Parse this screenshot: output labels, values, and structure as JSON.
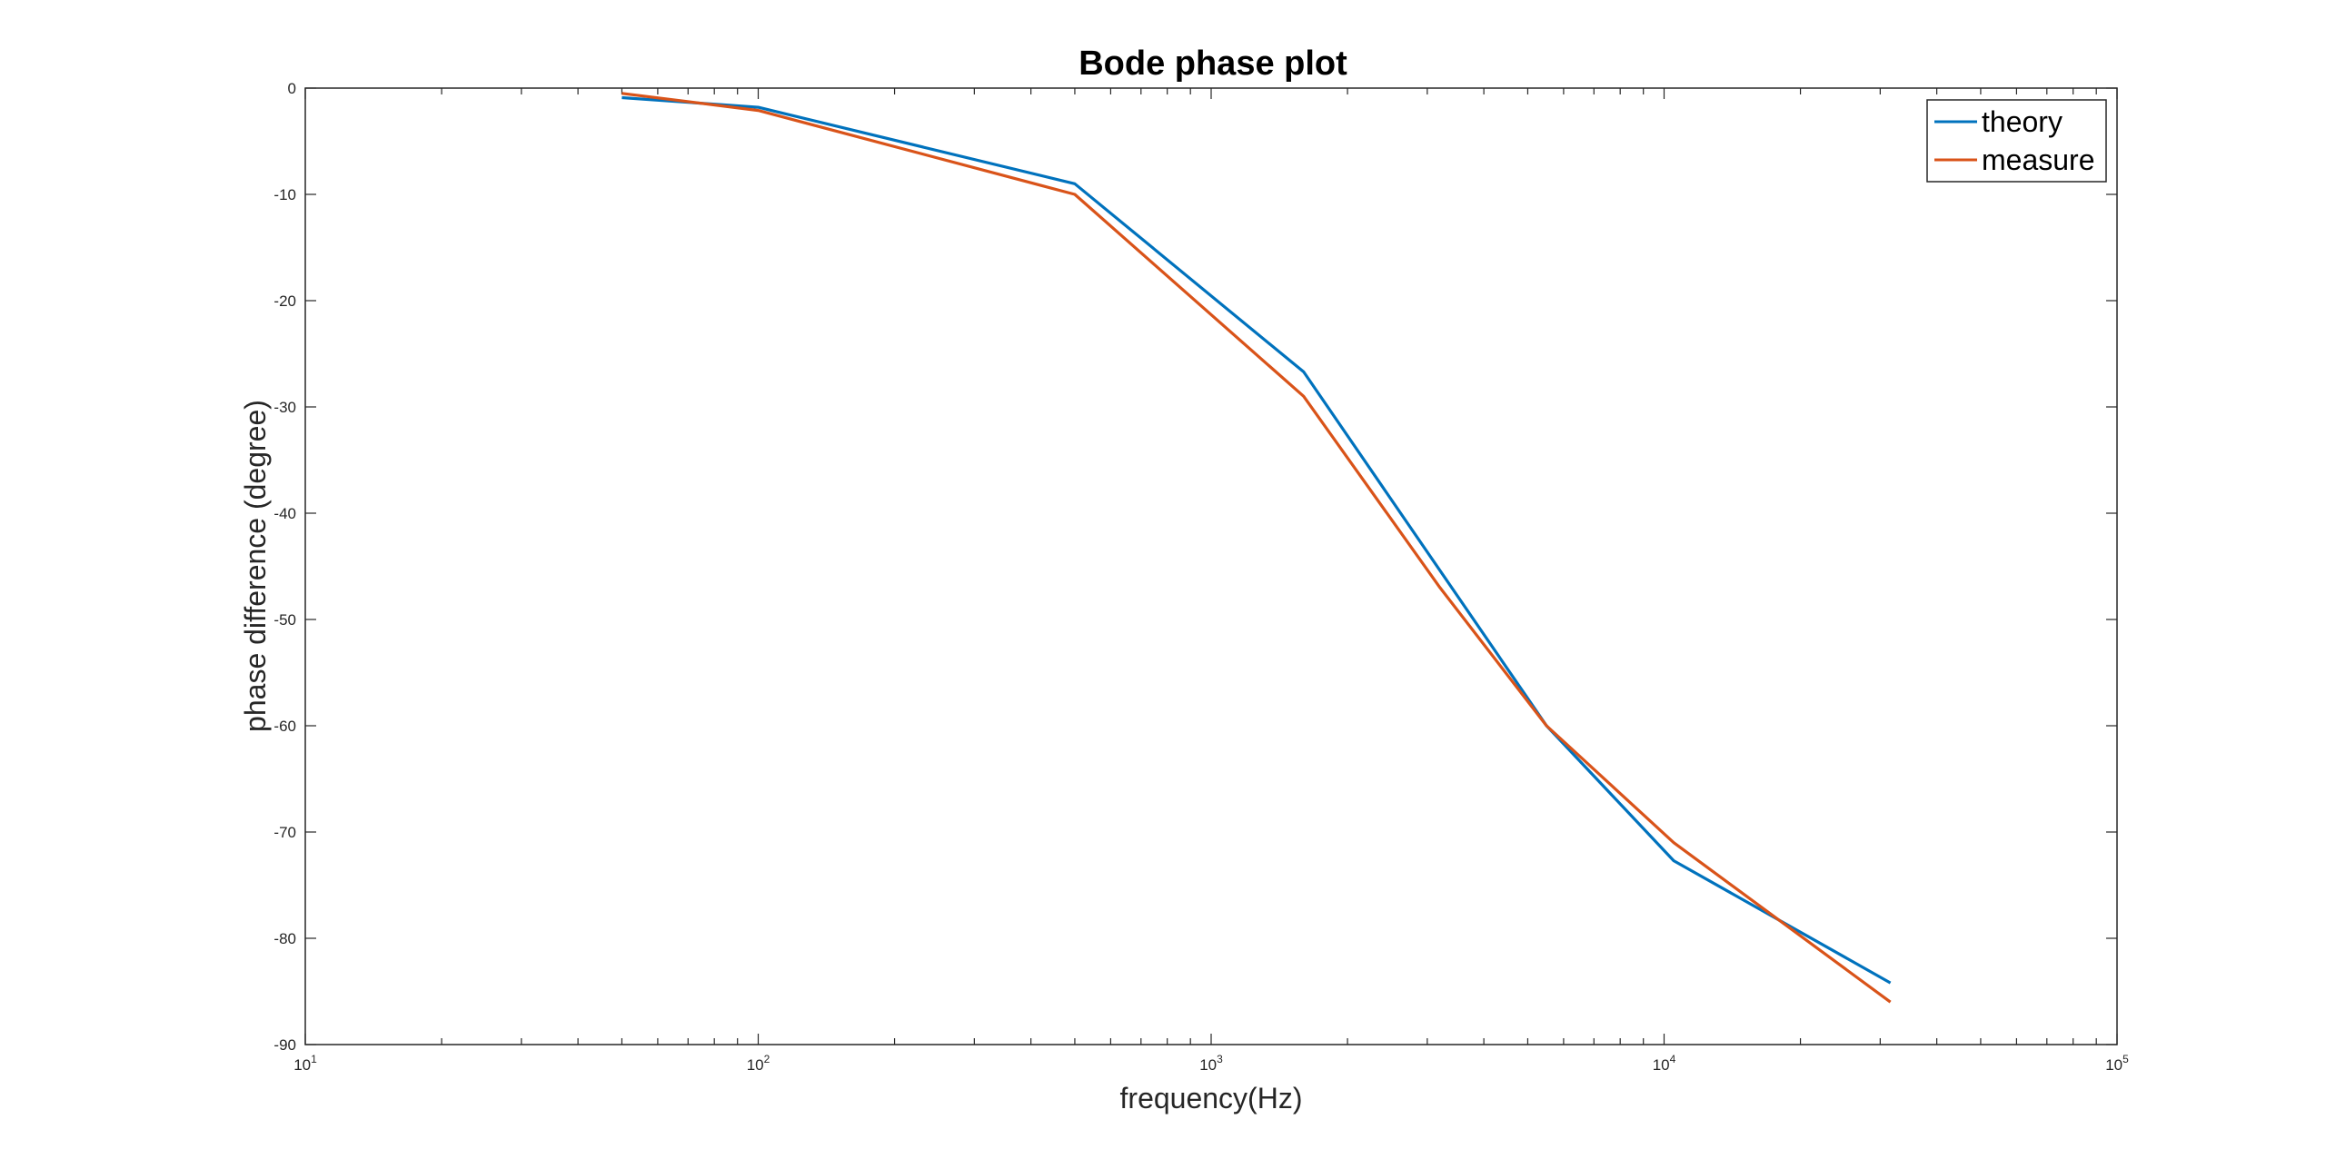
{
  "chart_data": {
    "type": "line",
    "title": "Bode phase plot",
    "xlabel": "frequency(Hz)",
    "ylabel": "phase difference (degree)",
    "xscale": "log",
    "xlim": [
      10,
      100000
    ],
    "ylim": [
      -90,
      0
    ],
    "x_ticks": [
      {
        "value": 10,
        "base": "10",
        "exp": "1"
      },
      {
        "value": 100,
        "base": "10",
        "exp": "2"
      },
      {
        "value": 1000,
        "base": "10",
        "exp": "3"
      },
      {
        "value": 10000,
        "base": "10",
        "exp": "4"
      },
      {
        "value": 100000,
        "base": "10",
        "exp": "5"
      }
    ],
    "y_ticks": [
      {
        "value": 0,
        "label": "0"
      },
      {
        "value": -10,
        "label": "-10"
      },
      {
        "value": -20,
        "label": "-20"
      },
      {
        "value": -30,
        "label": "-30"
      },
      {
        "value": -40,
        "label": "-40"
      },
      {
        "value": -50,
        "label": "-50"
      },
      {
        "value": -60,
        "label": "-60"
      },
      {
        "value": -70,
        "label": "-70"
      },
      {
        "value": -80,
        "label": "-80"
      },
      {
        "value": -90,
        "label": "-90"
      }
    ],
    "grid": false,
    "legend_position": "top-right",
    "series": [
      {
        "name": "theory",
        "color": "#0072BD",
        "x": [
          50,
          100,
          500,
          1600,
          5500,
          10500,
          31600
        ],
        "y": [
          -0.9,
          -1.8,
          -9.0,
          -26.7,
          -60.0,
          -72.7,
          -84.2
        ]
      },
      {
        "name": "measure",
        "color": "#D95319",
        "x": [
          50,
          100,
          500,
          1600,
          3200,
          5500,
          10500,
          31600
        ],
        "y": [
          -0.5,
          -2.1,
          -10.0,
          -29.0,
          -47.0,
          -60.0,
          -71.0,
          -86.0
        ]
      }
    ]
  }
}
